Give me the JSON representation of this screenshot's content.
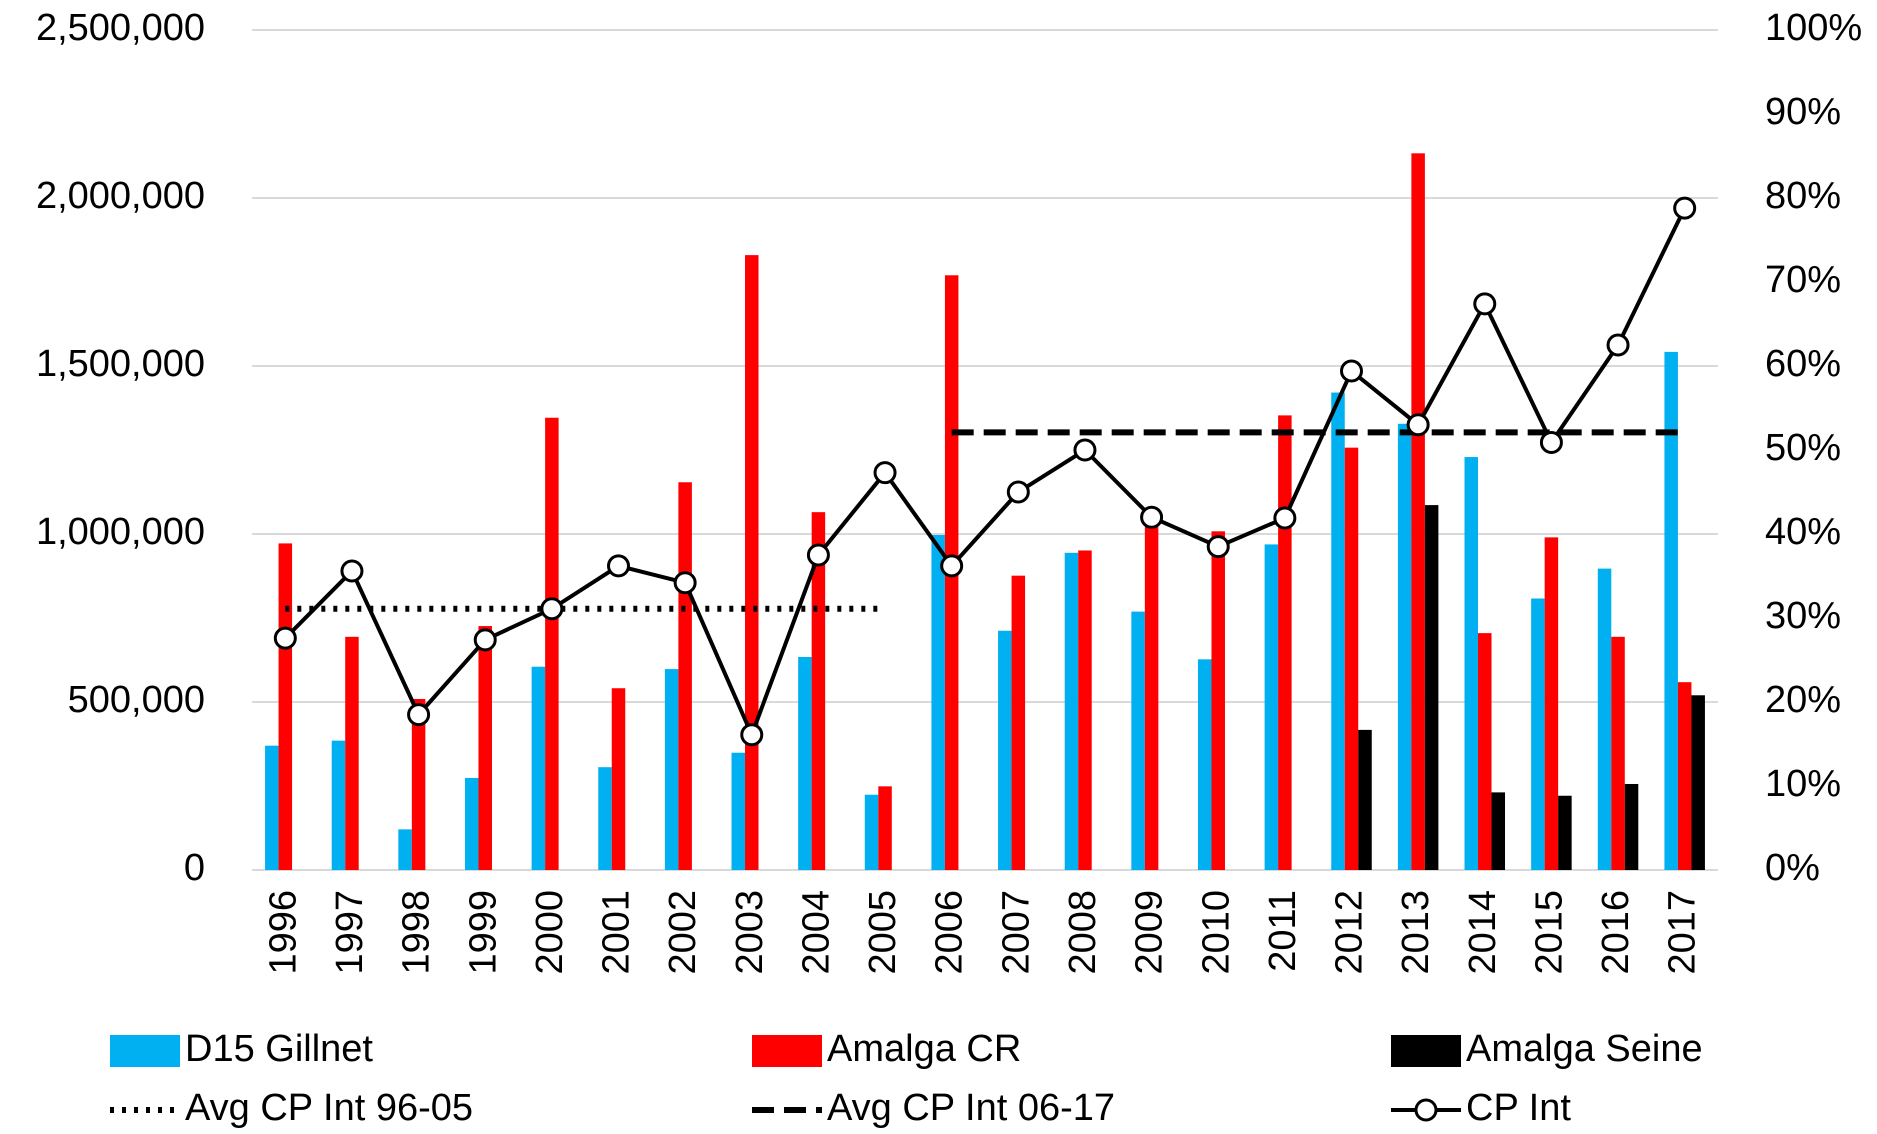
{
  "chart_data": {
    "type": "bar",
    "categories": [
      "1996",
      "1997",
      "1998",
      "1999",
      "2000",
      "2001",
      "2002",
      "2003",
      "2004",
      "2005",
      "2006",
      "2007",
      "2008",
      "2009",
      "2010",
      "2011",
      "2012",
      "2013",
      "2014",
      "2015",
      "2016",
      "2017"
    ],
    "series": [
      {
        "name": "D15 Gillnet",
        "type": "bar",
        "color": "#00b0f0",
        "values": [
          370000,
          385000,
          121000,
          274000,
          605000,
          306000,
          598000,
          349000,
          634000,
          224000,
          997000,
          712000,
          944000,
          769000,
          627000,
          969000,
          1421000,
          1328000,
          1229000,
          808000,
          897000,
          1542000
        ]
      },
      {
        "name": "Amalga CR",
        "type": "bar",
        "color": "#ff0000",
        "values": [
          972000,
          694000,
          509000,
          726000,
          1346000,
          541000,
          1154000,
          1830000,
          1065000,
          249000,
          1770000,
          876000,
          951000,
          1040000,
          1008000,
          1353000,
          1257000,
          2133000,
          705000,
          990000,
          694000,
          559000
        ]
      },
      {
        "name": "Amalga Seine",
        "type": "bar",
        "color": "#000000",
        "values": [
          null,
          null,
          null,
          null,
          null,
          null,
          null,
          null,
          null,
          null,
          null,
          null,
          null,
          null,
          null,
          null,
          417000,
          1086000,
          231000,
          221000,
          256000,
          520000
        ]
      },
      {
        "name": "Avg CP Int 96-05",
        "type": "line",
        "axis": "y2",
        "color": "#000000",
        "linestyle": "dotted",
        "values": [
          31.1,
          31.1,
          31.1,
          31.1,
          31.1,
          31.1,
          31.1,
          31.1,
          31.1,
          31.1,
          null,
          null,
          null,
          null,
          null,
          null,
          null,
          null,
          null,
          null,
          null,
          null
        ]
      },
      {
        "name": "Avg CP Int 06-17",
        "type": "line",
        "axis": "y2",
        "color": "#000000",
        "linestyle": "dashed",
        "values": [
          null,
          null,
          null,
          null,
          null,
          null,
          null,
          null,
          null,
          null,
          52.1,
          52.1,
          52.1,
          52.1,
          52.1,
          52.1,
          52.1,
          52.1,
          52.1,
          52.1,
          52.1,
          52.1
        ]
      },
      {
        "name": "CP Int",
        "type": "line",
        "axis": "y2",
        "color": "#000000",
        "linestyle": "solid",
        "marker": "circle",
        "values": [
          27.6,
          35.6,
          18.5,
          27.4,
          31.1,
          36.2,
          34.2,
          16.1,
          37.5,
          47.3,
          36.2,
          45.0,
          50.0,
          42.0,
          38.5,
          41.9,
          59.4,
          53.0,
          67.4,
          50.9,
          62.5,
          78.8
        ]
      }
    ],
    "ylim": [
      0,
      2500000
    ],
    "yticks": [
      0,
      {
        "value": 500000,
        "label": "500,000"
      },
      {
        "value": 1000000,
        "label": "1,000,000"
      },
      {
        "value": 1500000,
        "label": "1,500,000"
      },
      {
        "value": 2000000,
        "label": "2,000,000"
      },
      {
        "value": 2500000,
        "label": "2,500,000"
      }
    ],
    "y2lim": [
      0,
      100
    ],
    "y2ticks": [
      {
        "value": 0,
        "label": "0%"
      },
      {
        "value": 10,
        "label": "10%"
      },
      {
        "value": 20,
        "label": "20%"
      },
      {
        "value": 30,
        "label": "30%"
      },
      {
        "value": 40,
        "label": "40%"
      },
      {
        "value": 50,
        "label": "50%"
      },
      {
        "value": 60,
        "label": "60%"
      },
      {
        "value": 70,
        "label": "70%"
      },
      {
        "value": 80,
        "label": "80%"
      },
      {
        "value": 90,
        "label": "90%"
      },
      {
        "value": 100,
        "label": "100%"
      }
    ],
    "grid": true,
    "legend": "bottom"
  }
}
